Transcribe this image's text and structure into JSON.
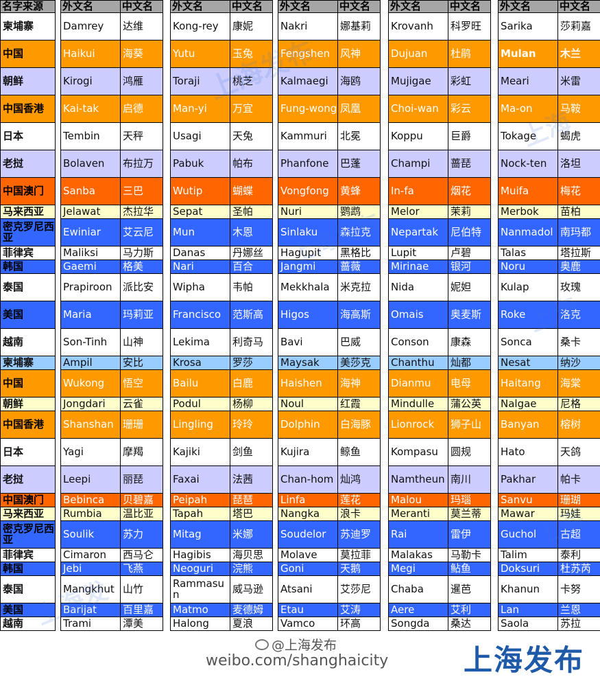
{
  "header": {
    "source": "名字来源",
    "foreign": "外文名",
    "chinese": "中文名"
  },
  "rows": [
    {
      "source": "柬埔寨",
      "color": "w",
      "h": 40,
      "names": [
        [
          "Damrey",
          "达维"
        ],
        [
          "Kong-rey",
          "康妮"
        ],
        [
          "Nakri",
          "娜基莉"
        ],
        [
          "Krovanh",
          "科罗旺"
        ],
        [
          "Sarika",
          "莎莉嘉"
        ]
      ]
    },
    {
      "source": "中国",
      "color": "o",
      "h": 40,
      "names": [
        [
          "Haikui",
          "海葵"
        ],
        [
          "Yutu",
          "玉兔"
        ],
        [
          "Fengshen",
          "风神"
        ],
        [
          "Dujuan",
          "杜鹃"
        ],
        [
          "Mulan",
          "木兰"
        ]
      ]
    },
    {
      "source": "朝鲜",
      "color": "l",
      "h": 40,
      "names": [
        [
          "Kirogi",
          "鸿雁"
        ],
        [
          "Toraji",
          "桃芝"
        ],
        [
          "Kalmaegi",
          "海鸥"
        ],
        [
          "Mujigae",
          "彩虹"
        ],
        [
          "Meari",
          "米雷"
        ]
      ]
    },
    {
      "source": "中国香港",
      "color": "o",
      "h": 40,
      "names": [
        [
          "Kai-tak",
          "启德"
        ],
        [
          "Man-yi",
          "万宜"
        ],
        [
          "Fung-wong",
          "凤凰"
        ],
        [
          "Choi-wan",
          "彩云"
        ],
        [
          "Ma-on",
          "马鞍"
        ]
      ]
    },
    {
      "source": "日本",
      "color": "w",
      "h": 40,
      "names": [
        [
          "Tembin",
          "天秤"
        ],
        [
          "Usagi",
          "天兔"
        ],
        [
          "Kammuri",
          "北冕"
        ],
        [
          "Koppu",
          "巨爵"
        ],
        [
          "Tokage",
          "蝎虎"
        ]
      ]
    },
    {
      "source": "老挝",
      "color": "l",
      "h": 40,
      "names": [
        [
          "Bolaven",
          "布拉万"
        ],
        [
          "Pabuk",
          "帕布"
        ],
        [
          "Phanfone",
          "巴蓬"
        ],
        [
          "Champi",
          "蔷琵"
        ],
        [
          "Nock-ten",
          "洛坦"
        ]
      ]
    },
    {
      "source": "中国澳门",
      "color": "r",
      "h": 40,
      "names": [
        [
          "Sanba",
          "三巴"
        ],
        [
          "Wutip",
          "蝴蝶"
        ],
        [
          "Vongfong",
          "黄蜂"
        ],
        [
          "In-fa",
          "烟花"
        ],
        [
          "Muifa",
          "梅花"
        ]
      ]
    },
    {
      "source": "马来西亚",
      "color": "y",
      "h": 20,
      "names": [
        [
          "Jelawat",
          "杰拉华"
        ],
        [
          "Sepat",
          "圣帕"
        ],
        [
          "Nuri",
          "鹦鹉"
        ],
        [
          "Melor",
          "茉莉"
        ],
        [
          "Merbok",
          "苗柏"
        ]
      ]
    },
    {
      "source": "密克罗尼西亚",
      "color": "b",
      "h": 40,
      "names": [
        [
          "Ewiniar",
          "艾云尼"
        ],
        [
          "Mun",
          "木恩"
        ],
        [
          "Sinlaku",
          "森拉克"
        ],
        [
          "Nepartak",
          "尼伯特"
        ],
        [
          "Nanmadol",
          "南玛都"
        ]
      ]
    },
    {
      "source": "菲律宾",
      "color": "w",
      "h": 20,
      "names": [
        [
          "Maliksi",
          "马力斯"
        ],
        [
          "Danas",
          "丹娜丝"
        ],
        [
          "Hagupit",
          "黑格比"
        ],
        [
          "Lupit",
          "卢碧"
        ],
        [
          "Talas",
          "塔拉斯"
        ]
      ]
    },
    {
      "source": "韩国",
      "color": "b",
      "h": 20,
      "names": [
        [
          "Gaemi",
          "格美"
        ],
        [
          "Nari",
          "百合"
        ],
        [
          "Jangmi",
          "蔷薇"
        ],
        [
          "Mirinae",
          "银河"
        ],
        [
          "Noru",
          "奥鹿"
        ]
      ]
    },
    {
      "source": "泰国",
      "color": "w",
      "h": 40,
      "names": [
        [
          "Prapiroon",
          "派比安"
        ],
        [
          "Wipha",
          "韦帕"
        ],
        [
          "Mekkhala",
          "米克拉"
        ],
        [
          "Nida",
          "妮妲"
        ],
        [
          "Kulap",
          "玫瑰"
        ]
      ]
    },
    {
      "source": "美国",
      "color": "b",
      "h": 40,
      "names": [
        [
          "Maria",
          "玛莉亚"
        ],
        [
          "Francisco",
          "范斯高"
        ],
        [
          "Higos",
          "海高斯"
        ],
        [
          "Omais",
          "奥麦斯"
        ],
        [
          "Roke",
          "洛克"
        ]
      ]
    },
    {
      "source": "越南",
      "color": "w",
      "h": 40,
      "names": [
        [
          "Son-Tinh",
          "山神"
        ],
        [
          "Lekima",
          "利奇马"
        ],
        [
          "Bavi",
          "巴威"
        ],
        [
          "Conson",
          "康森"
        ],
        [
          "Sonca",
          "桑卡"
        ]
      ]
    },
    {
      "source": "柬埔寨",
      "color": "s",
      "h": 20,
      "names": [
        [
          "Ampil",
          "安比"
        ],
        [
          "Krosa",
          "罗莎"
        ],
        [
          "Maysak",
          "美莎克"
        ],
        [
          "Chanthu",
          "灿都"
        ],
        [
          "Nesat",
          "纳沙"
        ]
      ]
    },
    {
      "source": "中国",
      "color": "o",
      "h": 40,
      "names": [
        [
          "Wukong",
          "悟空"
        ],
        [
          "Bailu",
          "白鹿"
        ],
        [
          "Haishen",
          "海神"
        ],
        [
          "Dianmu",
          "电母"
        ],
        [
          "Haitang",
          "海棠"
        ]
      ]
    },
    {
      "source": "朝鲜",
      "color": "y",
      "h": 20,
      "names": [
        [
          "Jongdari",
          "云雀"
        ],
        [
          "Podul",
          "杨柳"
        ],
        [
          "Noul",
          "红霞"
        ],
        [
          "Mindulle",
          "蒲公英"
        ],
        [
          "Nalgae",
          "尼格"
        ]
      ]
    },
    {
      "source": "中国香港",
      "color": "o",
      "h": 40,
      "names": [
        [
          "Shanshan",
          "珊珊"
        ],
        [
          "Lingling",
          "玲玲"
        ],
        [
          "Dolphin",
          "白海豚"
        ],
        [
          "Lionrock",
          "狮子山"
        ],
        [
          "Banyan",
          "榕树"
        ]
      ]
    },
    {
      "source": "日本",
      "color": "w",
      "h": 40,
      "names": [
        [
          "Yagi",
          "摩羯"
        ],
        [
          "Kajiki",
          "剑鱼"
        ],
        [
          "Kujira",
          "鲸鱼"
        ],
        [
          "Kompasu",
          "圆规"
        ],
        [
          "Hato",
          "天鸽"
        ]
      ]
    },
    {
      "source": "老挝",
      "color": "l",
      "h": 40,
      "names": [
        [
          "Leepi",
          "丽琵"
        ],
        [
          "Faxai",
          "法茜"
        ],
        [
          "Chan-hom",
          "灿鸿"
        ],
        [
          "Namtheun",
          "南川"
        ],
        [
          "Pakhar",
          "帕卡"
        ]
      ]
    },
    {
      "source": "中国澳门",
      "color": "r",
      "h": 20,
      "names": [
        [
          "Bebinca",
          "贝碧嘉"
        ],
        [
          "Peipah",
          "琵琶"
        ],
        [
          "Linfa",
          "莲花"
        ],
        [
          "Malou",
          "玛瑙"
        ],
        [
          "Sanvu",
          "珊瑚"
        ]
      ]
    },
    {
      "source": "马来西亚",
      "color": "y",
      "h": 20,
      "names": [
        [
          "Rumbia",
          "温比亚"
        ],
        [
          "Tapah",
          "塔巴"
        ],
        [
          "Nangka",
          "浪卡"
        ],
        [
          "Meranti",
          "莫兰蒂"
        ],
        [
          "Mawar",
          "玛娃"
        ]
      ]
    },
    {
      "source": "密克罗尼西亚",
      "color": "b",
      "h": 40,
      "names": [
        [
          "Soulik",
          "苏力"
        ],
        [
          "Mitag",
          "米娜"
        ],
        [
          "Soudelor",
          "苏迪罗"
        ],
        [
          "Rai",
          "雷伊"
        ],
        [
          "Guchol",
          "古超"
        ]
      ]
    },
    {
      "source": "菲律宾",
      "color": "w",
      "h": 20,
      "names": [
        [
          "Cimaron",
          "西马仑"
        ],
        [
          "Hagibis",
          "海贝思"
        ],
        [
          "Molave",
          "莫拉菲"
        ],
        [
          "Malakas",
          "马勒卡"
        ],
        [
          "Talim",
          "泰利"
        ]
      ]
    },
    {
      "source": "韩国",
      "color": "b",
      "h": 20,
      "names": [
        [
          "Jebi",
          "飞燕"
        ],
        [
          "Neoguri",
          "浣熊"
        ],
        [
          "Goni",
          "天鹅"
        ],
        [
          "Megi",
          "鲇鱼"
        ],
        [
          "Doksuri",
          "杜苏芮"
        ]
      ]
    },
    {
      "source": "泰国",
      "color": "w",
      "h": 40,
      "names": [
        [
          "Mangkhut",
          "山竹"
        ],
        [
          "Rammasun",
          "威马逊"
        ],
        [
          "Atsani",
          "艾莎尼"
        ],
        [
          "Chaba",
          "暹芭"
        ],
        [
          "Khanun",
          "卡努"
        ]
      ]
    },
    {
      "source": "美国",
      "color": "b",
      "h": 20,
      "names": [
        [
          "Barijat",
          "百里嘉"
        ],
        [
          "Matmo",
          "麦德姆"
        ],
        [
          "Etau",
          "艾涛"
        ],
        [
          "Aere",
          "艾利"
        ],
        [
          "Lan",
          "兰恩"
        ]
      ]
    },
    {
      "source": "越南",
      "color": "w",
      "h": 20,
      "names": [
        [
          "Trami",
          "潭美"
        ],
        [
          "Halong",
          "夏浪"
        ],
        [
          "Vamco",
          "环高"
        ],
        [
          "Songda",
          "桑达"
        ],
        [
          "Saola",
          "苏拉"
        ]
      ]
    }
  ],
  "footer": {
    "weibo_handle": "@上海发布",
    "weibo_url": "weibo.com/shanghaicity",
    "brand": "上海发布"
  }
}
